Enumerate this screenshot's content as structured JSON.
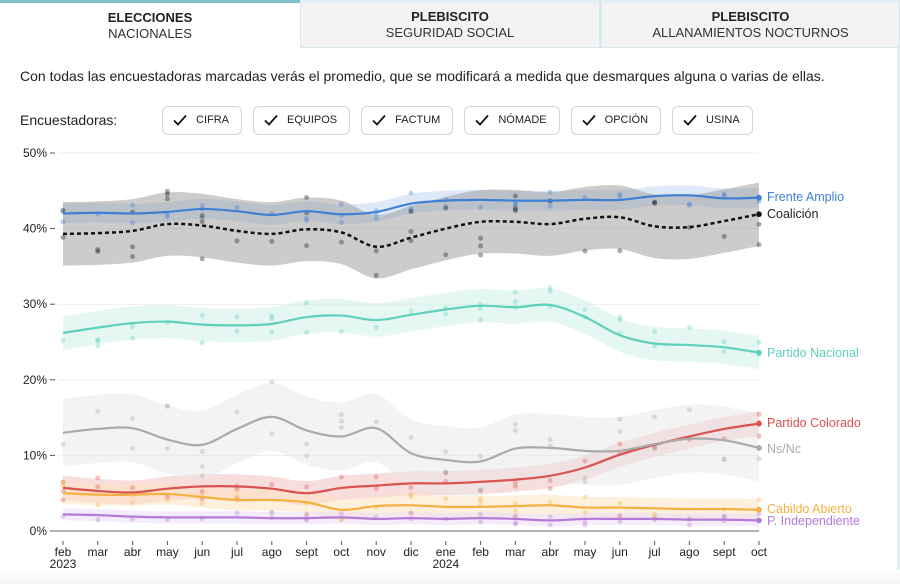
{
  "tabs": [
    {
      "line1": "ELECCIONES",
      "line2": "NACIONALES",
      "active": true
    },
    {
      "line1": "PLEBISCITO",
      "line2": "SEGURIDAD SOCIAL",
      "active": false
    },
    {
      "line1": "PLEBISCITO",
      "line2": "ALLANAMIENTOS NOCTURNOS",
      "active": false
    }
  ],
  "intro_text": "Con todas las encuestadoras marcadas verás el promedio, que se modificará a medida que desmarques alguna o varias de ellas.",
  "pollsters": {
    "label": "Encuestadoras:",
    "items": [
      {
        "name": "CIFRA",
        "checked": true,
        "icon": "check-icon"
      },
      {
        "name": "EQUIPOS",
        "checked": true,
        "icon": "check-icon"
      },
      {
        "name": "FACTUM",
        "checked": true,
        "icon": "check-icon"
      },
      {
        "name": "NÓMADE",
        "checked": true,
        "icon": "check-icon"
      },
      {
        "name": "OPCIÓN",
        "checked": true,
        "icon": "check-icon"
      },
      {
        "name": "USINA",
        "checked": true,
        "icon": "check-icon"
      }
    ]
  },
  "chart_data": {
    "type": "line",
    "title": "",
    "xlabel": "",
    "ylabel": "",
    "ylim": [
      0,
      50
    ],
    "yticks": [
      "0%",
      "10%",
      "20%",
      "30%",
      "40%",
      "50%"
    ],
    "ytick_values": [
      0,
      10,
      20,
      30,
      40,
      50
    ],
    "grid": true,
    "legend": "direct labels at right end of lines",
    "x": [
      "feb 2023",
      "mar 2023",
      "abr 2023",
      "may 2023",
      "jun 2023",
      "jul 2023",
      "ago 2023",
      "sept 2023",
      "oct 2023",
      "nov 2023",
      "dic 2023",
      "ene 2024",
      "feb 2024",
      "mar 2024",
      "abr 2024",
      "may 2024",
      "jun 2024",
      "jul 2024",
      "ago 2024",
      "sept 2024",
      "oct 2024"
    ],
    "xtick_labels": [
      {
        "month": "feb",
        "year": "2023"
      },
      {
        "month": "mar",
        "year": ""
      },
      {
        "month": "abr",
        "year": ""
      },
      {
        "month": "may",
        "year": ""
      },
      {
        "month": "jun",
        "year": ""
      },
      {
        "month": "jul",
        "year": ""
      },
      {
        "month": "ago",
        "year": ""
      },
      {
        "month": "sept",
        "year": ""
      },
      {
        "month": "oct",
        "year": ""
      },
      {
        "month": "nov",
        "year": ""
      },
      {
        "month": "dic",
        "year": ""
      },
      {
        "month": "ene",
        "year": "2024"
      },
      {
        "month": "feb",
        "year": ""
      },
      {
        "month": "mar",
        "year": ""
      },
      {
        "month": "abr",
        "year": ""
      },
      {
        "month": "may",
        "year": ""
      },
      {
        "month": "jun",
        "year": ""
      },
      {
        "month": "jul",
        "year": ""
      },
      {
        "month": "ago",
        "year": ""
      },
      {
        "month": "sept",
        "year": ""
      },
      {
        "month": "oct",
        "year": ""
      }
    ],
    "series": [
      {
        "name": "Frente Amplio",
        "color": "#3f7fd4",
        "band_color": "#bcd3f3",
        "dash": false,
        "band": 1.3,
        "values": [
          42.0,
          42.1,
          42.0,
          42.2,
          42.6,
          42.3,
          41.8,
          42.3,
          41.9,
          42.2,
          43.3,
          43.7,
          43.8,
          43.7,
          43.7,
          43.8,
          43.8,
          44.3,
          44.4,
          44.0,
          44.1
        ]
      },
      {
        "name": "Coalición",
        "color": "#111111",
        "band_color": "#9a9a9a",
        "dash": true,
        "band": 4.2,
        "values": [
          39.3,
          39.4,
          39.7,
          40.6,
          40.4,
          39.7,
          39.3,
          39.9,
          39.5,
          37.6,
          38.8,
          40.0,
          40.9,
          40.9,
          40.6,
          41.3,
          41.5,
          40.3,
          40.2,
          41.0,
          41.9
        ]
      },
      {
        "name": "Partido Nacional",
        "color": "#5fd0bb",
        "band_color": "#c9f0e8",
        "dash": false,
        "band": 2.2,
        "values": [
          26.2,
          26.9,
          27.5,
          27.7,
          27.3,
          27.2,
          27.4,
          28.3,
          28.5,
          27.9,
          28.6,
          29.3,
          29.8,
          29.6,
          29.9,
          28.3,
          25.9,
          24.8,
          24.6,
          24.3,
          23.6
        ]
      },
      {
        "name": "Partido Colorado",
        "color": "#d9534f",
        "band_color": "#f1bcbb",
        "dash": false,
        "band": 1.6,
        "values": [
          5.7,
          5.3,
          5.1,
          5.6,
          5.9,
          5.9,
          5.6,
          5.0,
          5.7,
          6.0,
          6.3,
          6.3,
          6.5,
          6.8,
          7.3,
          8.4,
          10.1,
          11.4,
          12.5,
          13.5,
          14.2
        ]
      },
      {
        "name": "Ns/Nc",
        "color": "#aaaaaa",
        "band_color": "#e8e8e8",
        "dash": false,
        "band": 4.5,
        "values": [
          13.0,
          13.5,
          13.6,
          12.1,
          11.4,
          13.5,
          15.1,
          13.3,
          12.5,
          13.6,
          10.3,
          9.4,
          9.2,
          10.9,
          11.0,
          10.6,
          10.6,
          11.5,
          12.2,
          12.0,
          11.0
        ]
      },
      {
        "name": "Cabildo Abierto",
        "color": "#f5b041",
        "band_color": "#fbe3bd",
        "dash": false,
        "band": 1.4,
        "values": [
          5.0,
          4.8,
          4.8,
          4.9,
          4.5,
          4.1,
          4.1,
          3.8,
          2.8,
          3.3,
          3.4,
          3.2,
          3.2,
          3.3,
          3.4,
          3.1,
          3.1,
          3.0,
          2.9,
          2.9,
          2.8
        ]
      },
      {
        "name": "P. Independiente",
        "color": "#b57ad9",
        "band_color": "#ead9f5",
        "dash": false,
        "band": 0.8,
        "values": [
          2.2,
          2.1,
          1.9,
          1.8,
          1.8,
          1.8,
          1.7,
          1.7,
          1.8,
          1.6,
          1.7,
          1.6,
          1.7,
          1.6,
          1.4,
          1.6,
          1.6,
          1.6,
          1.5,
          1.5,
          1.4
        ]
      }
    ]
  }
}
